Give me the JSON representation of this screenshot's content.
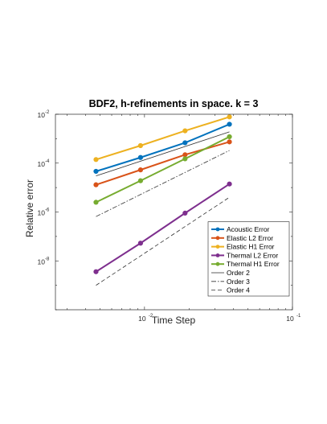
{
  "chart_data": {
    "type": "line",
    "title": "BDF2, h-refinements in space. k = 3",
    "xlabel": "Time Step",
    "ylabel": "Relative error",
    "xscale": "log",
    "yscale": "log",
    "xlim": [
      0.0025,
      0.1
    ],
    "ylim": [
      1e-10,
      0.01
    ],
    "xticks": [
      {
        "value": 0.01,
        "base": "10",
        "exp": "-2"
      },
      {
        "value": 0.1,
        "base": "10",
        "exp": "-1"
      }
    ],
    "yticks": [
      {
        "value": 1e-08,
        "base": "10",
        "exp": "-8"
      },
      {
        "value": 1e-06,
        "base": "10",
        "exp": "-6"
      },
      {
        "value": 0.0001,
        "base": "10",
        "exp": "-4"
      },
      {
        "value": 0.01,
        "base": "10",
        "exp": "-2"
      }
    ],
    "grid": false,
    "legend_position": "bottom-right",
    "series": [
      {
        "name": "Acoustic Error",
        "color": "#0072BD",
        "style": "line-marker",
        "x": [
          0.0047,
          0.0094,
          0.0188,
          0.0375
        ],
        "y": [
          4.6e-05,
          0.00017,
          0.00068,
          0.0039
        ]
      },
      {
        "name": "Elastic L2 Error",
        "color": "#D95319",
        "style": "line-marker",
        "x": [
          0.0047,
          0.0094,
          0.0188,
          0.0375
        ],
        "y": [
          1.3e-05,
          5.3e-05,
          0.00022,
          0.00074
        ]
      },
      {
        "name": "Elastic H1 Error",
        "color": "#EDB120",
        "style": "line-marker",
        "x": [
          0.0047,
          0.0094,
          0.0188,
          0.0375
        ],
        "y": [
          0.00014,
          0.00052,
          0.0021,
          0.0078
        ]
      },
      {
        "name": "Thermal L2 Error",
        "color": "#7E2F8E",
        "style": "line-marker",
        "x": [
          0.0047,
          0.0094,
          0.0188,
          0.0375
        ],
        "y": [
          3.6e-09,
          5.3e-08,
          9e-07,
          1.4e-05
        ]
      },
      {
        "name": "Thermal H1 Error",
        "color": "#77AC30",
        "style": "line-marker",
        "x": [
          0.0047,
          0.0094,
          0.0188,
          0.0375
        ],
        "y": [
          2.5e-06,
          1.9e-05,
          0.00015,
          0.0012
        ]
      },
      {
        "name": "Order 2",
        "color": "#333333",
        "style": "solid",
        "x": [
          0.0047,
          0.0375
        ],
        "y": [
          3e-05,
          0.0019
        ]
      },
      {
        "name": "Order 3",
        "color": "#333333",
        "style": "dashdot",
        "x": [
          0.0047,
          0.0375
        ],
        "y": [
          6.5e-07,
          0.00033
        ]
      },
      {
        "name": "Order 4",
        "color": "#333333",
        "style": "dashed",
        "x": [
          0.0047,
          0.0375
        ],
        "y": [
          1e-09,
          4e-06
        ]
      }
    ]
  }
}
